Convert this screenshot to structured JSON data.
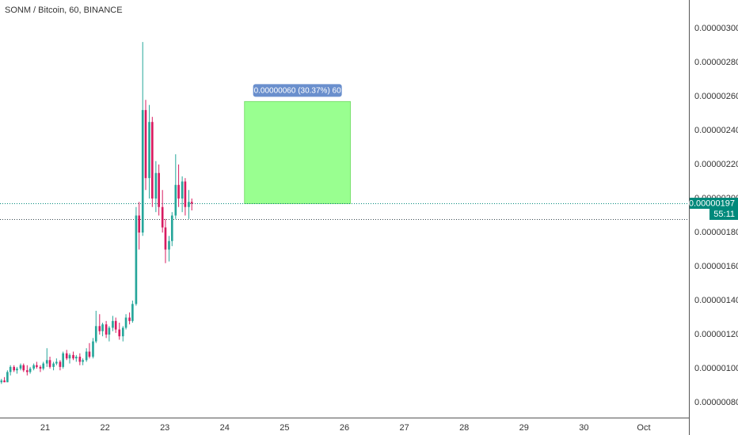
{
  "chart_data": {
    "type": "candlestick",
    "title": "SONM / Bitcoin, 60, BINANCE",
    "xlim": [
      20.246,
      31.754
    ],
    "xticks": [
      21,
      22,
      23,
      24,
      25,
      26,
      27,
      28,
      29,
      30,
      {
        "value": 31,
        "label": "Oct"
      }
    ],
    "ylim": [
      7.12e-07,
      3.167e-06
    ],
    "yticks": [
      {
        "value": 8e-07,
        "label": "0.00000080"
      },
      {
        "value": 1e-06,
        "label": "0.00000100"
      },
      {
        "value": 1.2e-06,
        "label": "0.00000120"
      },
      {
        "value": 1.4e-06,
        "label": "0.00000140"
      },
      {
        "value": 1.6e-06,
        "label": "0.00000160"
      },
      {
        "value": 1.8e-06,
        "label": "0.00000180"
      },
      {
        "value": 2e-06,
        "label": "0.00000200"
      },
      {
        "value": 2.2e-06,
        "label": "0.00000220"
      },
      {
        "value": 2.4e-06,
        "label": "0.00000240"
      },
      {
        "value": 2.6e-06,
        "label": "0.00000260"
      },
      {
        "value": 2.8e-06,
        "label": "0.00000280"
      },
      {
        "value": 3e-06,
        "label": "0.00000300"
      }
    ],
    "up_color": "#26a69a",
    "down_color": "#d81b60",
    "x": [
      20.27,
      20.32,
      20.37,
      20.42,
      20.48,
      20.53,
      20.59,
      20.64,
      20.7,
      20.75,
      20.81,
      20.86,
      20.92,
      20.97,
      21.03,
      21.08,
      21.14,
      21.19,
      21.25,
      21.3,
      21.36,
      21.41,
      21.47,
      21.52,
      21.58,
      21.63,
      21.69,
      21.74,
      21.8,
      21.85,
      21.91,
      21.96,
      22.02,
      22.07,
      22.13,
      22.18,
      22.24,
      22.3,
      22.35,
      22.41,
      22.46,
      22.52,
      22.57,
      22.63,
      22.68,
      22.74,
      22.79,
      22.85,
      22.9,
      22.96,
      23.01,
      23.07,
      23.12,
      23.18,
      23.23,
      23.29,
      23.34,
      23.4,
      23.45
    ],
    "open": [
      9.2e-07,
      9.3e-07,
      9.2e-07,
      9.8e-07,
      1.01e-06,
      9.9e-07,
      1e-06,
      1.02e-06,
      9.9e-07,
      9.8e-07,
      1e-06,
      1.02e-06,
      1.01e-06,
      1e-06,
      1.03e-06,
      1.05e-06,
      1.01e-06,
      1.03e-06,
      1.04e-06,
      1.01e-06,
      1.09e-06,
      1.06e-06,
      1.08e-06,
      1.06e-06,
      1.07e-06,
      1.04e-06,
      1.05e-06,
      1.1e-06,
      1.07e-06,
      1.16e-06,
      1.25e-06,
      1.22e-06,
      1.26e-06,
      1.2e-06,
      1.24e-06,
      1.28e-06,
      1.23e-06,
      1.19e-06,
      1.24e-06,
      1.3e-06,
      1.28e-06,
      1.38e-06,
      1.9e-06,
      1.8e-06,
      2.52e-06,
      2.12e-06,
      2.45e-06,
      2e-06,
      2.15e-06,
      1.95e-06,
      1.83e-06,
      1.7e-06,
      1.75e-06,
      1.9e-06,
      2.08e-06,
      2e-06,
      2.1e-06,
      1.95e-06,
      1.98e-06
    ],
    "high": [
      9.4e-07,
      9.5e-07,
      9.9e-07,
      1.02e-06,
      1.02e-06,
      1.01e-06,
      1.03e-06,
      1.03e-06,
      1.02e-06,
      1.01e-06,
      1.03e-06,
      1.04e-06,
      1.02e-06,
      1.04e-06,
      1.12e-06,
      1.07e-06,
      1.04e-06,
      1.06e-06,
      1.05e-06,
      1.1e-06,
      1.11e-06,
      1.09e-06,
      1.1e-06,
      1.08e-06,
      1.09e-06,
      1.06e-06,
      1.12e-06,
      1.15e-06,
      1.18e-06,
      1.34e-06,
      1.32e-06,
      1.27e-06,
      1.28e-06,
      1.25e-06,
      1.31e-06,
      1.3e-06,
      1.27e-06,
      1.25e-06,
      1.32e-06,
      1.33e-06,
      1.4e-06,
      1.95e-06,
      1.98e-06,
      2.92e-06,
      2.58e-06,
      2.55e-06,
      2.48e-06,
      2.22e-06,
      2.2e-06,
      2.05e-06,
      1.88e-06,
      1.78e-06,
      1.92e-06,
      2.26e-06,
      2.2e-06,
      2.13e-06,
      2.12e-06,
      2.05e-06,
      2e-06
    ],
    "low": [
      9.1e-07,
      9.2e-07,
      9.2e-07,
      9.6e-07,
      9.8e-07,
      9.7e-07,
      9.9e-07,
      9.8e-07,
      9.6e-07,
      9.7e-07,
      9.9e-07,
      1e-06,
      9.8e-07,
      9.9e-07,
      1.01e-06,
      1e-06,
      9.9e-07,
      1.02e-06,
      9.9e-07,
      1e-06,
      1.05e-06,
      1.03e-06,
      1.05e-06,
      1.04e-06,
      1.02e-06,
      1.02e-06,
      1.04e-06,
      1.06e-06,
      1.06e-06,
      1.15e-06,
      1.2e-06,
      1.19e-06,
      1.18e-06,
      1.16e-06,
      1.22e-06,
      1.21e-06,
      1.17e-06,
      1.16e-06,
      1.23e-06,
      1.26e-06,
      1.27e-06,
      1.37e-06,
      1.7e-06,
      1.78e-06,
      2.05e-06,
      2e-06,
      1.95e-06,
      1.92e-06,
      1.9e-06,
      1.8e-06,
      1.62e-06,
      1.63e-06,
      1.72e-06,
      1.88e-06,
      1.95e-06,
      1.92e-06,
      1.9e-06,
      1.88e-06,
      1.93e-06
    ],
    "close": [
      9.3e-07,
      9.2e-07,
      9.8e-07,
      1.01e-06,
      9.9e-07,
      1e-06,
      1.02e-06,
      9.9e-07,
      9.8e-07,
      1e-06,
      1.02e-06,
      1.01e-06,
      1e-06,
      1.03e-06,
      1.05e-06,
      1.01e-06,
      1.03e-06,
      1.04e-06,
      1.01e-06,
      1.09e-06,
      1.06e-06,
      1.08e-06,
      1.06e-06,
      1.07e-06,
      1.04e-06,
      1.05e-06,
      1.1e-06,
      1.07e-06,
      1.16e-06,
      1.25e-06,
      1.22e-06,
      1.26e-06,
      1.2e-06,
      1.24e-06,
      1.28e-06,
      1.23e-06,
      1.19e-06,
      1.24e-06,
      1.3e-06,
      1.28e-06,
      1.38e-06,
      1.9e-06,
      1.8e-06,
      2.52e-06,
      2.12e-06,
      2.45e-06,
      2e-06,
      2.15e-06,
      1.95e-06,
      1.83e-06,
      1.7e-06,
      1.75e-06,
      1.9e-06,
      2.08e-06,
      2e-06,
      2.1e-06,
      1.95e-06,
      1.98e-06,
      1.97e-06
    ],
    "last_price": {
      "value": 1.97e-06,
      "label": "0.00000197",
      "countdown": "55:11",
      "color": "#00897b"
    },
    "ref_line": 1.88e-06,
    "annotation": {
      "label": "0.00000060 (30.37%) 60",
      "x": [
        24.33,
        26.1
      ],
      "y": [
        1.97e-06,
        2.57e-06
      ],
      "color": "#99ff90",
      "label_color": "#6a8fcd"
    }
  }
}
